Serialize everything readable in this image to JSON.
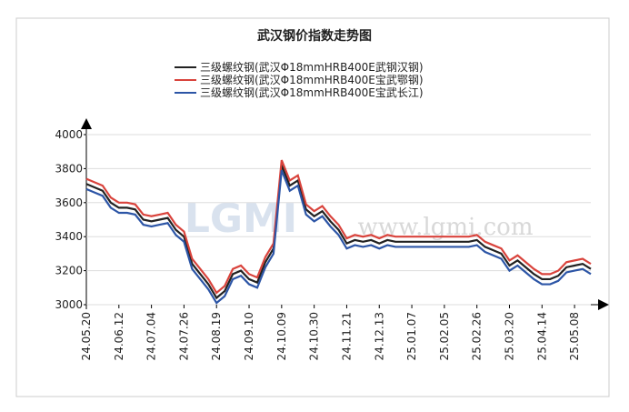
{
  "chart_data": {
    "type": "line",
    "title": "武汉钢价指数走势图",
    "watermark": [
      "LGMI",
      "www.lgmi.com"
    ],
    "categories": [
      "24.05.20",
      null,
      null,
      null,
      "24.06.12",
      null,
      null,
      null,
      "24.07.04",
      null,
      null,
      null,
      "24.07.26",
      null,
      null,
      null,
      "24.08.19",
      null,
      null,
      null,
      "24.09.10",
      null,
      null,
      null,
      "24.10.09",
      null,
      null,
      null,
      "24.10.30",
      null,
      null,
      null,
      "24.11.21",
      null,
      null,
      null,
      "24.12.13",
      null,
      null,
      null,
      "25.01.07",
      null,
      null,
      null,
      "25.02.05",
      null,
      null,
      null,
      "25.02.26",
      null,
      null,
      null,
      "25.03.20",
      null,
      null,
      null,
      "25.04.14",
      null,
      null,
      null,
      "25.05.08",
      null,
      null
    ],
    "series": [
      {
        "name": "三级螺纹钢(武汉Φ18mmHRB400E武钢汉钢)",
        "color": "#222222",
        "values": [
          3710,
          3690,
          3670,
          3600,
          3570,
          3570,
          3560,
          3500,
          3490,
          3500,
          3510,
          3440,
          3400,
          3240,
          3180,
          3120,
          3040,
          3080,
          3180,
          3200,
          3150,
          3130,
          3250,
          3330,
          3820,
          3700,
          3730,
          3560,
          3520,
          3550,
          3490,
          3440,
          3360,
          3380,
          3370,
          3380,
          3360,
          3380,
          3370,
          3370,
          3370,
          3370,
          3370,
          3370,
          3370,
          3370,
          3370,
          3370,
          3380,
          3340,
          3320,
          3300,
          3230,
          3260,
          3220,
          3180,
          3150,
          3150,
          3170,
          3220,
          3230,
          3240,
          3210
        ]
      },
      {
        "name": "三级螺纹钢(武汉Φ18mmHRB400E宝武鄂钢)",
        "color": "#d9433c",
        "values": [
          3740,
          3720,
          3700,
          3630,
          3600,
          3600,
          3590,
          3530,
          3520,
          3530,
          3540,
          3470,
          3430,
          3270,
          3210,
          3150,
          3070,
          3110,
          3210,
          3230,
          3180,
          3160,
          3280,
          3360,
          3850,
          3730,
          3760,
          3590,
          3550,
          3580,
          3520,
          3470,
          3390,
          3410,
          3400,
          3410,
          3390,
          3410,
          3400,
          3400,
          3400,
          3400,
          3400,
          3400,
          3400,
          3400,
          3400,
          3400,
          3410,
          3370,
          3350,
          3330,
          3260,
          3290,
          3250,
          3210,
          3180,
          3180,
          3200,
          3250,
          3260,
          3270,
          3240
        ]
      },
      {
        "name": "三级螺纹钢(武汉Φ18mmHRB400E宝武长江)",
        "color": "#2c55a6",
        "values": [
          3680,
          3660,
          3640,
          3570,
          3540,
          3540,
          3530,
          3470,
          3460,
          3470,
          3480,
          3410,
          3370,
          3210,
          3150,
          3090,
          3010,
          3050,
          3150,
          3170,
          3120,
          3100,
          3220,
          3300,
          3790,
          3670,
          3700,
          3530,
          3490,
          3520,
          3460,
          3410,
          3330,
          3350,
          3340,
          3350,
          3330,
          3350,
          3340,
          3340,
          3340,
          3340,
          3340,
          3340,
          3340,
          3340,
          3340,
          3340,
          3350,
          3310,
          3290,
          3270,
          3200,
          3230,
          3190,
          3150,
          3120,
          3120,
          3140,
          3190,
          3200,
          3210,
          3180
        ]
      }
    ],
    "ylim": [
      3000,
      4000
    ],
    "yticks": [
      3000,
      3200,
      3400,
      3600,
      3800,
      4000
    ],
    "grid": true
  }
}
